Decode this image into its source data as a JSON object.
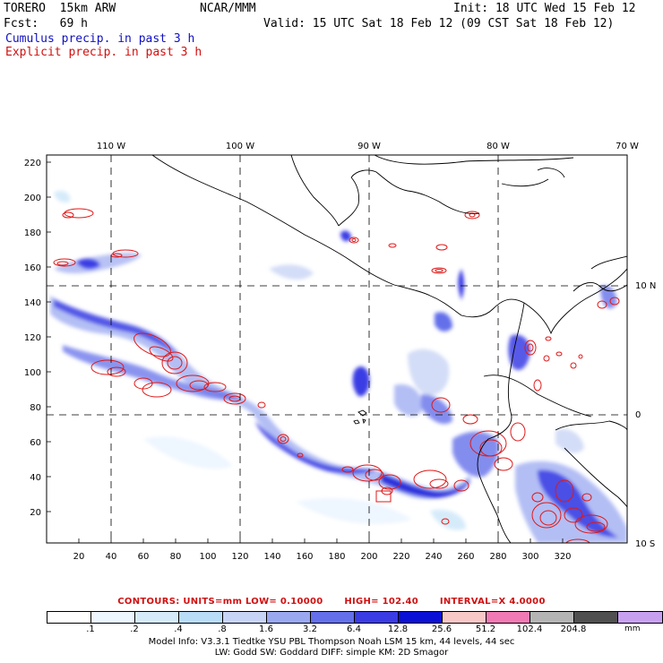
{
  "header": {
    "model": "TORERO  15km ARW",
    "center": "NCAR/MMM",
    "init": "Init: 18 UTC Wed 15 Feb 12",
    "fcst": "Fcst:   69 h",
    "valid": "Valid: 15 UTC Sat 18 Feb 12 (09 CST Sat 18 Feb 12)",
    "cumulus": "Cumulus precip. in past 3 h",
    "explicit": "Explicit precip. in past 3 h"
  },
  "axes": {
    "top_lon_labels": [
      "110 W",
      "100 W",
      "90 W",
      "80 W",
      "70 W"
    ],
    "right_lat_labels": [
      "10 N",
      "0",
      "10 S"
    ],
    "left_y_labels": [
      "220",
      "200",
      "180",
      "160",
      "140",
      "120",
      "100",
      "80",
      "60",
      "40",
      "20"
    ],
    "bottom_x_labels": [
      "20",
      "40",
      "60",
      "80",
      "100",
      "120",
      "140",
      "160",
      "180",
      "200",
      "220",
      "240",
      "260",
      "280",
      "300",
      "320"
    ]
  },
  "contours": {
    "units": "CONTOURS:  UNITS=mm  LOW= 0.10000",
    "high": "HIGH=  102.40",
    "interval": "INTERVAL=X  4.0000"
  },
  "colorbar": {
    "labels": [
      ".1",
      ".2",
      ".4",
      ".8",
      "1.6",
      "3.2",
      "6.4",
      "12.8",
      "25.6",
      "51.2",
      "102.4",
      "204.8"
    ],
    "colors": [
      "#ffffff",
      "#eef6ff",
      "#d6ebfa",
      "#b9dcf7",
      "#c8d4f5",
      "#9aa8f0",
      "#6470ea",
      "#3a3ce4",
      "#0b10d6",
      "#f8c8c8",
      "#f07ab4",
      "#b4b4b4",
      "#505050",
      "#c8a0f0"
    ],
    "unit": "mm"
  },
  "footer": {
    "line1": "Model Info: V3.3.1    Tiedtke YSU PBL  Thompson    Noah LSM  15 km,    44 levels,    44 sec",
    "line2": "LW: Godd SW: Goddard DIFF: simple KM: 2D Smagor"
  }
}
